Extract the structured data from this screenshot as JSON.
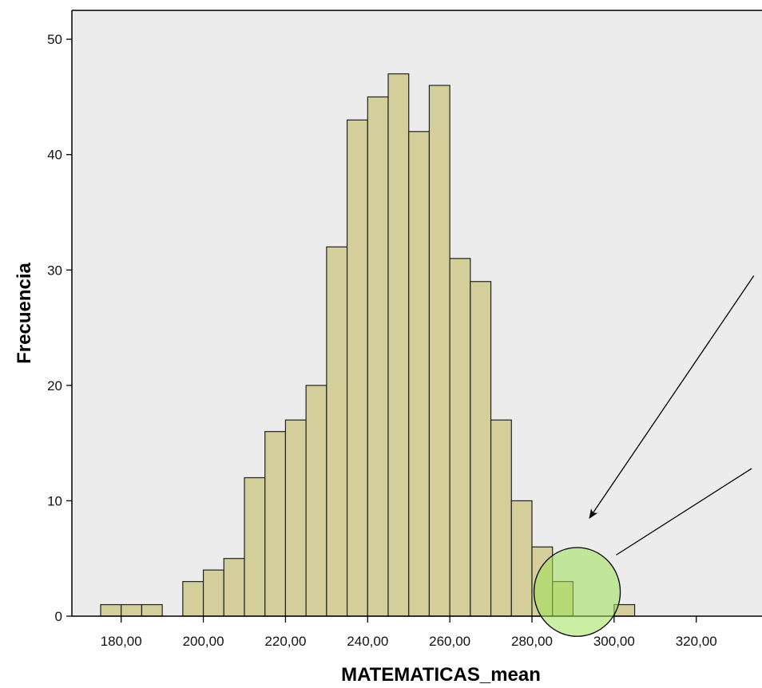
{
  "chart_data": {
    "type": "bar",
    "subtype": "histogram",
    "xlabel": "MATEMATICAS_mean",
    "ylabel": "Frecuencia",
    "title": "",
    "xlim": [
      168,
      336
    ],
    "ylim": [
      0,
      52.5
    ],
    "bin_width": 5,
    "x_ticks": [
      180,
      200,
      220,
      240,
      260,
      280,
      300,
      320
    ],
    "x_tick_labels": [
      "180,00",
      "200,00",
      "220,00",
      "240,00",
      "260,00",
      "280,00",
      "300,00",
      "320,00"
    ],
    "y_ticks": [
      0,
      10,
      20,
      30,
      40,
      50
    ],
    "y_tick_labels": [
      "0",
      "10",
      "20",
      "30",
      "40",
      "50"
    ],
    "bins": [
      {
        "start": 175,
        "count": 1
      },
      {
        "start": 180,
        "count": 1
      },
      {
        "start": 185,
        "count": 1
      },
      {
        "start": 195,
        "count": 3
      },
      {
        "start": 200,
        "count": 4
      },
      {
        "start": 205,
        "count": 5
      },
      {
        "start": 210,
        "count": 12
      },
      {
        "start": 215,
        "count": 16
      },
      {
        "start": 220,
        "count": 17
      },
      {
        "start": 225,
        "count": 20
      },
      {
        "start": 230,
        "count": 32
      },
      {
        "start": 235,
        "count": 43
      },
      {
        "start": 240,
        "count": 45
      },
      {
        "start": 245,
        "count": 47
      },
      {
        "start": 250,
        "count": 42
      },
      {
        "start": 255,
        "count": 46
      },
      {
        "start": 260,
        "count": 31
      },
      {
        "start": 265,
        "count": 29
      },
      {
        "start": 270,
        "count": 17
      },
      {
        "start": 275,
        "count": 10
      },
      {
        "start": 280,
        "count": 6
      },
      {
        "start": 285,
        "count": 3
      },
      {
        "start": 300,
        "count": 1
      }
    ],
    "grid": false,
    "legend": "none",
    "colors": {
      "bar_fill": "#d3ce9a",
      "bar_stroke": "#222222",
      "plot_background": "#ececec",
      "highlight_fill": "#9fe25a"
    },
    "annotations": {
      "highlight_circle": {
        "center_x": 291,
        "center_y": 2.1,
        "radius_x": 10.5
      },
      "arrow": {
        "from_x": 334,
        "from_y": 29.5,
        "to_x": 294,
        "to_y": 8.5
      },
      "line": {
        "from_x": 333.5,
        "from_y": 12.8,
        "to_x": 300.5,
        "to_y": 5.3
      }
    }
  }
}
